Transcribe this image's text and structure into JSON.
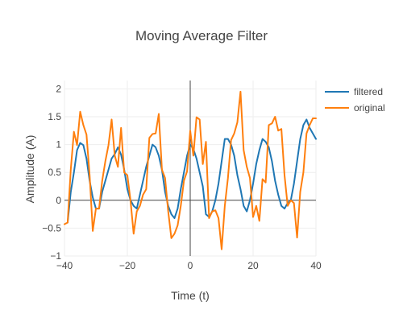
{
  "chart_data": {
    "type": "line",
    "title": "Moving Average Filter",
    "xlabel": "Time (t)",
    "ylabel": "Amplitude (A)",
    "xlim": [
      -40,
      40
    ],
    "ylim": [
      -1,
      2.15
    ],
    "x_ticks": [
      -40,
      -20,
      0,
      20,
      40
    ],
    "x_tick_labels": [
      "−40",
      "−20",
      "0",
      "20",
      "40"
    ],
    "y_ticks": [
      -1,
      -0.5,
      0,
      0.5,
      1,
      1.5,
      2
    ],
    "y_tick_labels": [
      "−1",
      "−0.5",
      "0",
      "0.5",
      "1",
      "1.5",
      "2"
    ],
    "grid": true,
    "legend_position": "top-right",
    "series": [
      {
        "name": "filtered",
        "color": "#1f77b4",
        "x": [
          -39,
          -38,
          -37,
          -36,
          -35,
          -34,
          -33,
          -32,
          -31,
          -30,
          -29,
          -28,
          -27,
          -26,
          -25,
          -24,
          -23,
          -22,
          -21,
          -20,
          -19,
          -18,
          -17,
          -16,
          -15,
          -14,
          -13,
          -12,
          -11,
          -10,
          -9,
          -8,
          -7,
          -6,
          -5,
          -4,
          -3,
          -2,
          -1,
          0,
          1,
          2,
          3,
          4,
          5,
          6,
          7,
          8,
          9,
          10,
          11,
          12,
          13,
          14,
          15,
          16,
          17,
          18,
          19,
          20,
          21,
          22,
          23,
          24,
          25,
          26,
          27,
          28,
          29,
          30,
          31,
          32,
          33,
          34,
          35,
          36,
          37,
          38,
          39,
          40
        ],
        "y": [
          -0.4,
          0.15,
          0.5,
          0.9,
          1.03,
          0.99,
          0.75,
          0.35,
          0.05,
          -0.15,
          -0.15,
          0.15,
          0.35,
          0.55,
          0.75,
          0.83,
          0.95,
          0.82,
          0.55,
          0.2,
          0.0,
          -0.1,
          -0.15,
          0.1,
          0.35,
          0.6,
          0.8,
          1.0,
          0.95,
          0.8,
          0.55,
          0.15,
          -0.1,
          -0.25,
          -0.32,
          -0.15,
          0.2,
          0.5,
          0.8,
          1.0,
          0.92,
          0.75,
          0.5,
          0.25,
          -0.25,
          -0.3,
          -0.2,
          0.0,
          0.3,
          0.7,
          1.1,
          1.1,
          1.0,
          0.8,
          0.45,
          0.2,
          -0.1,
          -0.2,
          0.0,
          0.3,
          0.65,
          0.9,
          1.1,
          1.05,
          0.95,
          0.7,
          0.35,
          0.1,
          -0.1,
          -0.15,
          -0.05,
          0.0,
          0.3,
          0.7,
          1.1,
          1.35,
          1.45,
          1.3,
          1.2,
          1.1
        ]
      },
      {
        "name": "original",
        "color": "#ff7f0e",
        "x": [
          -40,
          -39,
          -38,
          -37,
          -36,
          -35,
          -34,
          -33,
          -32,
          -31,
          -30,
          -29,
          -28,
          -27,
          -26,
          -25,
          -24,
          -23,
          -22,
          -21,
          -20,
          -19,
          -18,
          -17,
          -16,
          -15,
          -14,
          -13,
          -12,
          -11,
          -10,
          -9,
          -8,
          -7,
          -6,
          -5,
          -4,
          -3,
          -2,
          -1,
          0,
          1,
          2,
          3,
          4,
          5,
          6,
          7,
          8,
          9,
          10,
          11,
          12,
          13,
          14,
          15,
          16,
          17,
          18,
          19,
          20,
          21,
          22,
          23,
          24,
          25,
          26,
          27,
          28,
          29,
          30,
          31,
          32,
          33,
          34,
          35,
          36,
          37,
          38,
          39,
          40
        ],
        "y": [
          -0.43,
          -0.4,
          0.55,
          1.23,
          0.99,
          1.59,
          1.35,
          1.18,
          0.45,
          -0.55,
          -0.15,
          -0.15,
          0.35,
          0.7,
          0.99,
          1.45,
          0.8,
          0.6,
          1.3,
          0.5,
          0.45,
          0.0,
          -0.6,
          -0.2,
          -0.1,
          0.1,
          0.2,
          1.12,
          1.19,
          1.2,
          1.55,
          0.55,
          0.4,
          -0.2,
          -0.68,
          -0.6,
          -0.45,
          -0.1,
          0.35,
          0.52,
          1.25,
          0.8,
          1.49,
          1.45,
          0.65,
          1.05,
          -0.32,
          -0.2,
          -0.18,
          -0.32,
          -0.88,
          -0.1,
          0.4,
          1.08,
          1.2,
          1.4,
          1.95,
          0.9,
          0.6,
          0.4,
          -0.3,
          -0.1,
          -0.37,
          0.38,
          0.32,
          1.35,
          1.38,
          1.5,
          1.25,
          1.28,
          0.45,
          -0.1,
          0.0,
          -0.05,
          -0.67,
          0.15,
          0.5,
          1.2,
          1.35,
          1.47,
          1.47
        ]
      }
    ]
  }
}
